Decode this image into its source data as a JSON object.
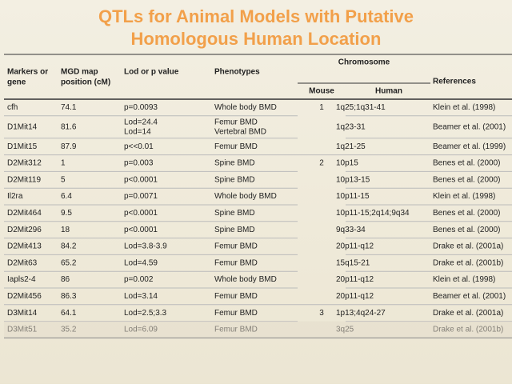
{
  "title": [
    "QTLs for Animal Models with Putative",
    "Homologous Human Location"
  ],
  "table": {
    "headers": {
      "markers": [
        "Markers or",
        "gene"
      ],
      "position": [
        "MGD map",
        "position (cM)"
      ],
      "lod": "Lod or p value",
      "phenotypes": "Phenotypes",
      "chromosome": "Chromosome",
      "mouse": "Mouse",
      "human": "Human",
      "references": "References"
    },
    "rows": [
      {
        "marker": "cfh",
        "position": "74.1",
        "lod": [
          "p=0.0093"
        ],
        "phenotype": [
          "Whole body BMD"
        ],
        "mouse": "1",
        "human": "1q25;1q31-41",
        "reference": "Klein et al. (1998)"
      },
      {
        "marker": "D1Mit14",
        "position": "81.6",
        "lod": [
          "Lod=24.4",
          "Lod=14"
        ],
        "phenotype": [
          "Femur BMD",
          "Vertebral BMD"
        ],
        "human": "1q23-31",
        "reference": "Beamer et al. (2001)"
      },
      {
        "marker": "D1Mit15",
        "position": "87.9",
        "lod": [
          "p<<0.01"
        ],
        "phenotype": [
          "Femur BMD"
        ],
        "human": "1q21-25",
        "reference": "Beamer et al. (1999)"
      },
      {
        "marker": "D2Mit312",
        "position": "1",
        "lod": [
          "p=0.003"
        ],
        "phenotype": [
          "Spine BMD"
        ],
        "mouse": "2",
        "human": "10p15",
        "reference": "Benes et al. (2000)"
      },
      {
        "marker": "D2Mit119",
        "position": "5",
        "lod": [
          "p<0.0001"
        ],
        "phenotype": [
          "Spine BMD"
        ],
        "human": "10p13-15",
        "reference": "Benes et al. (2000)"
      },
      {
        "marker": "Il2ra",
        "position": "6.4",
        "lod": [
          "p=0.0071"
        ],
        "phenotype": [
          "Whole body BMD"
        ],
        "human": "10p11-15",
        "reference": "Klein et al. (1998)"
      },
      {
        "marker": "D2Mit464",
        "position": "9.5",
        "lod": [
          "p<0.0001"
        ],
        "phenotype": [
          "Spine BMD"
        ],
        "human": "10p11-15;2q14;9q34",
        "reference": "Benes et al. (2000)"
      },
      {
        "marker": "D2Mit296",
        "position": "18",
        "lod": [
          "p<0.0001"
        ],
        "phenotype": [
          "Spine BMD"
        ],
        "human": "9q33-34",
        "reference": "Benes et al. (2000)"
      },
      {
        "marker": "D2Mit413",
        "position": "84.2",
        "lod": [
          "Lod=3.8-3.9"
        ],
        "phenotype": [
          "Femur BMD"
        ],
        "human": "20p11-q12",
        "reference": "Drake et al. (2001a)"
      },
      {
        "marker": "D2Mit63",
        "position": "65.2",
        "lod": [
          "Lod=4.59"
        ],
        "phenotype": [
          "Femur BMD"
        ],
        "human": "15q15-21",
        "reference": "Drake et al. (2001b)"
      },
      {
        "marker": "Iapls2-4",
        "position": "86",
        "lod": [
          "p=0.002"
        ],
        "phenotype": [
          "Whole body BMD"
        ],
        "human": "20p11-q12",
        "reference": "Klein et al. (1998)"
      },
      {
        "marker": "D2Mit456",
        "position": "86.3",
        "lod": [
          "Lod=3.14"
        ],
        "phenotype": [
          "Femur BMD"
        ],
        "human": "20p11-q12",
        "reference": "Beamer et al. (2001)"
      },
      {
        "marker": "D3Mit14",
        "position": "64.1",
        "lod": [
          "Lod=2.5;3.3"
        ],
        "phenotype": [
          "Femur BMD"
        ],
        "mouse": "3",
        "human": "1p13;4q24-27",
        "reference": "Drake et al. (2001a)"
      },
      {
        "marker": "D3Mit51",
        "position": "35.2",
        "lod": [
          "Lod=6.09"
        ],
        "phenotype": [
          "Femur BMD"
        ],
        "human": "3q25",
        "reference": "Drake et al. (2001b)"
      }
    ]
  }
}
